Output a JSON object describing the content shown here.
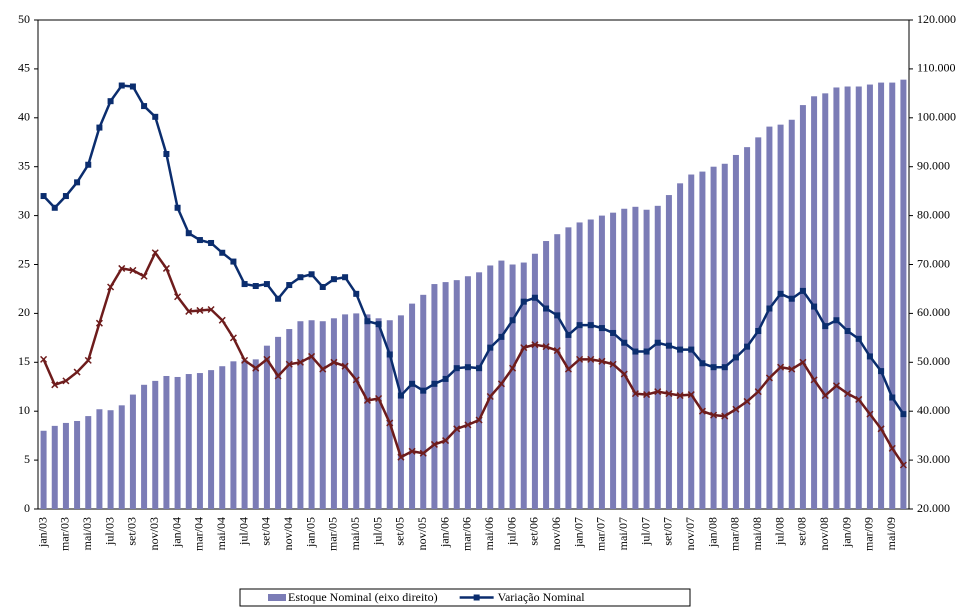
{
  "chart_data": {
    "type": "combo",
    "categories": [
      "jan/03",
      null,
      "mar/03",
      null,
      "mai/03",
      null,
      "jul/03",
      null,
      "set/03",
      null,
      "nov/03",
      null,
      "jan/04",
      null,
      "mar/04",
      null,
      "mai/04",
      null,
      "jul/04",
      null,
      "set/04",
      null,
      "nov/04",
      null,
      "jan/05",
      null,
      "mar/05",
      null,
      "mai/05",
      null,
      "jul/05",
      null,
      "set/05",
      null,
      "nov/05",
      null,
      "jan/06",
      null,
      "mar/06",
      null,
      "mai/06",
      null,
      "jul/06",
      null,
      "set/06",
      null,
      "nov/06",
      null,
      "jan/07",
      null,
      "mar/07",
      null,
      "mai/07",
      null,
      "jul/07",
      null,
      "set/07",
      null,
      "nov/07",
      null,
      "jan/08",
      null,
      "mar/08",
      null,
      "mai/08",
      null,
      "jul/08",
      null,
      "set/08",
      null,
      "nov/08",
      null,
      "jan/09",
      null,
      "mar/09",
      null,
      "mai/09",
      null
    ],
    "series": [
      {
        "name": "Estoque Nominal (eixo direito)",
        "type": "bar",
        "axis": "y2",
        "color": "#7b7cb6",
        "values": [
          36000,
          37000,
          37600,
          38000,
          39000,
          40400,
          40200,
          41200,
          43400,
          45400,
          46200,
          47200,
          47000,
          47600,
          47800,
          48400,
          49200,
          50200,
          50400,
          50600,
          53400,
          55200,
          56800,
          58400,
          58600,
          58400,
          59000,
          59800,
          60000,
          59800,
          59000,
          58600,
          59600,
          62000,
          63800,
          66000,
          66400,
          66800,
          67600,
          68400,
          69800,
          70800,
          70000,
          70400,
          72200,
          74800,
          76200,
          77600,
          78600,
          79200,
          80000,
          80600,
          81400,
          81800,
          81200,
          82000,
          84200,
          86600,
          88400,
          89000,
          90000,
          90600,
          92400,
          94000,
          96000,
          98200,
          98600,
          99600,
          102600,
          104400,
          105000,
          106200,
          106400,
          106400,
          106800,
          107200,
          107200,
          107800
        ]
      },
      {
        "name": "Variação Nominal",
        "type": "line",
        "marker": "square",
        "color": "#0b2d6e",
        "values": [
          32.0,
          30.8,
          32.0,
          33.4,
          35.2,
          39.0,
          41.7,
          43.3,
          43.2,
          41.2,
          40.1,
          36.3,
          30.8,
          28.2,
          27.5,
          27.2,
          26.2,
          25.3,
          23.0,
          22.8,
          23.0,
          21.5,
          22.9,
          23.7,
          24.0,
          22.7,
          23.5,
          23.7,
          22.0,
          19.2,
          18.9,
          15.8,
          11.6,
          12.8,
          12.1,
          12.8,
          13.3,
          14.4,
          14.5,
          14.4,
          16.5,
          17.6,
          19.3,
          21.2,
          21.6,
          20.5,
          19.8,
          17.8,
          18.8,
          18.8,
          18.5,
          18.0,
          17.0,
          16.1,
          16.1,
          17.0,
          16.7,
          16.3,
          16.3,
          14.9,
          14.5,
          14.5,
          15.5,
          16.6,
          18.2,
          20.5,
          22.0,
          21.5,
          22.3,
          20.7,
          18.7,
          19.3,
          18.2,
          17.4,
          15.6,
          14.1,
          11.4,
          9.7
        ]
      },
      {
        "type": "line",
        "marker": "x",
        "color": "#6e1c1c",
        "values": [
          15.3,
          12.7,
          13.1,
          14.0,
          15.2,
          19.0,
          22.7,
          24.6,
          24.4,
          23.8,
          26.2,
          24.6,
          21.7,
          20.2,
          20.3,
          20.4,
          19.3,
          17.5,
          15.2,
          14.4,
          15.3,
          13.6,
          14.8,
          15.0,
          15.6,
          14.3,
          15.0,
          14.6,
          13.2,
          11.1,
          11.3,
          8.8,
          5.3,
          5.9,
          5.7,
          6.6,
          7.0,
          8.2,
          8.6,
          9.1,
          11.5,
          12.8,
          14.4,
          16.5,
          16.8,
          16.6,
          16.2,
          14.3,
          15.3,
          15.3,
          15.1,
          14.8,
          13.8,
          11.8,
          11.7,
          12.0,
          11.8,
          11.6,
          11.7,
          10.0,
          9.6,
          9.5,
          10.2,
          11.0,
          12.0,
          13.4,
          14.5,
          14.3,
          15.0,
          13.2,
          11.6,
          12.6,
          11.8,
          11.2,
          9.7,
          8.2,
          6.2,
          4.5
        ]
      }
    ],
    "ylim": [
      0,
      50
    ],
    "yticks": [
      0,
      5,
      10,
      15,
      20,
      25,
      30,
      35,
      40,
      45,
      50
    ],
    "y2lim": [
      20000,
      120000
    ],
    "y2ticks": [
      {
        "value": 20000,
        "label": "20.000"
      },
      {
        "value": 30000,
        "label": "30.000"
      },
      {
        "value": 40000,
        "label": "40.000"
      },
      {
        "value": 50000,
        "label": "50.000"
      },
      {
        "value": 60000,
        "label": "60.000"
      },
      {
        "value": 70000,
        "label": "70.000"
      },
      {
        "value": 80000,
        "label": "80.000"
      },
      {
        "value": 90000,
        "label": "90.000"
      },
      {
        "value": 100000,
        "label": "100.000"
      },
      {
        "value": 110000,
        "label": "110.000"
      },
      {
        "value": 120000,
        "label": "120.000"
      }
    ],
    "legend": "bottom"
  }
}
